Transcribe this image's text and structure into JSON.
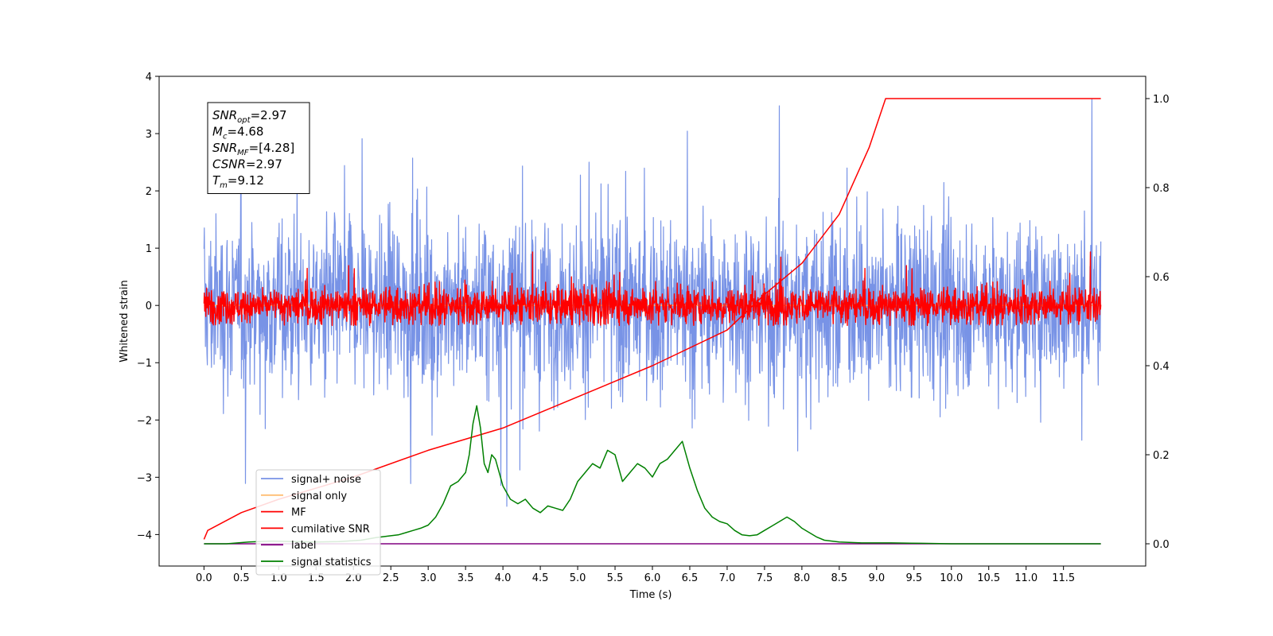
{
  "chart_data": {
    "type": "line",
    "xlabel": "Time (s)",
    "ylabel": "Whitened strain",
    "xlim": [
      -0.6,
      12.6
    ],
    "ylim": [
      -4.55,
      4.0
    ],
    "y2lim": [
      -0.05,
      1.05
    ],
    "x_ticks": [
      "0.0",
      "0.5",
      "1.0",
      "1.5",
      "2.0",
      "2.5",
      "3.0",
      "3.5",
      "4.0",
      "4.5",
      "5.0",
      "5.5",
      "6.0",
      "6.5",
      "7.0",
      "7.5",
      "8.0",
      "8.5",
      "9.0",
      "9.5",
      "10.0",
      "10.5",
      "11.0",
      "11.5"
    ],
    "y_ticks": [
      "4",
      "3",
      "2",
      "1",
      "0",
      "−1",
      "−2",
      "−3",
      "−4"
    ],
    "y2_ticks": [
      "1.0",
      "0.8",
      "0.6",
      "0.4",
      "0.2",
      "0.0"
    ],
    "grid": false,
    "legend_position": "lower-left",
    "colors": {
      "signal_noise": "#7893e6",
      "signal_only": "#ffbe73",
      "mf": "#ff0000",
      "cumulative_snr": "#ff0000",
      "label": "#800080",
      "signal_statistics": "#008000"
    },
    "annotation": {
      "lines": [
        {
          "base": "SNR",
          "sub": "opt",
          "value": "=2.97"
        },
        {
          "base": "M",
          "sub": "c",
          "value": "=4.68"
        },
        {
          "base": "SNR",
          "sub": "MF",
          "value": "=[4.28]"
        },
        {
          "base": "CSNR",
          "sub": "",
          "value": "=2.97"
        },
        {
          "base": "T",
          "sub": "m",
          "value": "=9.12"
        }
      ]
    },
    "series": [
      {
        "name": "signal+ noise",
        "axis": "left",
        "kind": "noise",
        "x_range": [
          0.0,
          12.0
        ],
        "typical_range": [
          -2.5,
          2.5
        ],
        "extremes": [
          -3.8,
          3.6
        ]
      },
      {
        "name": "signal only",
        "axis": "left",
        "kind": "flat",
        "x_range": [
          0.0,
          12.0
        ],
        "values": [
          0.0
        ]
      },
      {
        "name": "MF",
        "axis": "left",
        "kind": "noise",
        "x_range": [
          0.0,
          12.0
        ],
        "typical_range": [
          -0.35,
          0.5
        ],
        "extremes": [
          -0.35,
          1.0
        ]
      },
      {
        "name": "cumilative SNR",
        "axis": "right",
        "kind": "curve",
        "x": [
          0.0,
          0.05,
          0.5,
          1.0,
          2.0,
          3.0,
          4.0,
          5.0,
          6.0,
          7.0,
          7.5,
          8.0,
          8.5,
          8.9,
          9.12,
          12.0
        ],
        "values": [
          0.01,
          0.03,
          0.07,
          0.1,
          0.15,
          0.21,
          0.26,
          0.33,
          0.4,
          0.48,
          0.56,
          0.63,
          0.74,
          0.89,
          1.0,
          1.0
        ]
      },
      {
        "name": "label",
        "axis": "right",
        "kind": "line",
        "x": [
          0.0,
          12.0
        ],
        "values": [
          0.0,
          0.0
        ]
      },
      {
        "name": "signal statistics",
        "axis": "right",
        "kind": "line",
        "x": [
          0.0,
          0.3,
          0.6,
          0.9,
          1.2,
          1.5,
          1.8,
          2.1,
          2.3,
          2.5,
          2.6,
          2.7,
          2.8,
          2.9,
          3.0,
          3.1,
          3.2,
          3.3,
          3.4,
          3.5,
          3.55,
          3.6,
          3.65,
          3.7,
          3.75,
          3.8,
          3.85,
          3.9,
          4.0,
          4.1,
          4.2,
          4.3,
          4.4,
          4.5,
          4.6,
          4.7,
          4.8,
          4.9,
          5.0,
          5.1,
          5.2,
          5.3,
          5.4,
          5.5,
          5.6,
          5.7,
          5.8,
          5.9,
          6.0,
          6.1,
          6.2,
          6.3,
          6.4,
          6.5,
          6.6,
          6.7,
          6.8,
          6.9,
          7.0,
          7.1,
          7.2,
          7.3,
          7.4,
          7.5,
          7.6,
          7.7,
          7.8,
          7.9,
          8.0,
          8.1,
          8.2,
          8.3,
          8.5,
          8.8,
          9.2,
          9.6,
          10.0,
          11.0,
          12.0
        ],
        "values": [
          0.0,
          0.0,
          0.004,
          0.006,
          0.005,
          0.004,
          0.005,
          0.008,
          0.014,
          0.018,
          0.02,
          0.025,
          0.03,
          0.035,
          0.042,
          0.06,
          0.09,
          0.13,
          0.14,
          0.16,
          0.2,
          0.27,
          0.31,
          0.26,
          0.18,
          0.16,
          0.2,
          0.19,
          0.13,
          0.1,
          0.09,
          0.1,
          0.08,
          0.07,
          0.085,
          0.08,
          0.075,
          0.1,
          0.14,
          0.16,
          0.18,
          0.17,
          0.21,
          0.2,
          0.14,
          0.16,
          0.18,
          0.17,
          0.15,
          0.18,
          0.19,
          0.21,
          0.23,
          0.17,
          0.12,
          0.08,
          0.06,
          0.05,
          0.045,
          0.03,
          0.02,
          0.018,
          0.02,
          0.03,
          0.04,
          0.05,
          0.06,
          0.05,
          0.035,
          0.025,
          0.015,
          0.008,
          0.004,
          0.002,
          0.002,
          0.001,
          0.0,
          0.0,
          0.0
        ]
      }
    ]
  }
}
